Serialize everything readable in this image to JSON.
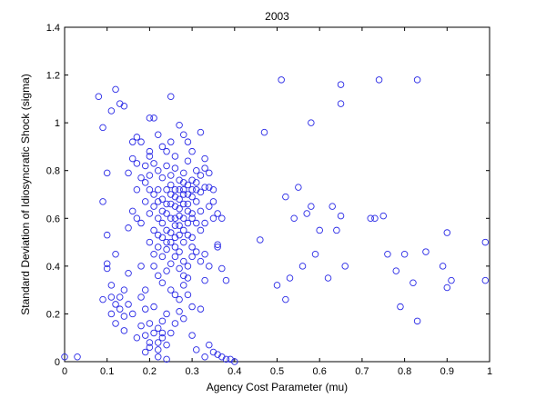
{
  "chart_data": {
    "type": "scatter",
    "title": "2003",
    "xlabel": "Agency Cost Parameter (mu)",
    "ylabel": "Standard Deviation of Idiosyncratic Shock (sigma)",
    "xlim": [
      0,
      1
    ],
    "ylim": [
      0,
      1.4
    ],
    "xticks": [
      "0",
      "0.1",
      "0.2",
      "0.3",
      "0.4",
      "0.5",
      "0.6",
      "0.7",
      "0.8",
      "0.9",
      "1"
    ],
    "yticks": [
      "0",
      "0.2",
      "0.4",
      "0.6",
      "0.8",
      "1",
      "1.2",
      "1.4"
    ],
    "grid": false,
    "marker_color": "#2a2ae6",
    "series": [
      {
        "marker": "circle-open",
        "points": [
          [
            0.0,
            0.02
          ],
          [
            0.03,
            0.02
          ],
          [
            0.08,
            1.11
          ],
          [
            0.09,
            0.98
          ],
          [
            0.1,
            0.79
          ],
          [
            0.1,
            0.41
          ],
          [
            0.1,
            0.39
          ],
          [
            0.11,
            1.05
          ],
          [
            0.12,
            1.14
          ],
          [
            0.12,
            0.45
          ],
          [
            0.13,
            1.08
          ],
          [
            0.14,
            1.07
          ],
          [
            0.1,
            0.53
          ],
          [
            0.09,
            0.67
          ],
          [
            0.09,
            0.26
          ],
          [
            0.11,
            0.2
          ],
          [
            0.11,
            0.32
          ],
          [
            0.12,
            0.24
          ],
          [
            0.13,
            0.27
          ],
          [
            0.14,
            0.3
          ],
          [
            0.14,
            0.19
          ],
          [
            0.15,
            0.37
          ],
          [
            0.15,
            0.79
          ],
          [
            0.16,
            0.85
          ],
          [
            0.16,
            0.92
          ],
          [
            0.17,
            0.94
          ],
          [
            0.17,
            0.83
          ],
          [
            0.18,
            0.92
          ],
          [
            0.18,
            0.4
          ],
          [
            0.18,
            0.27
          ],
          [
            0.19,
            0.3
          ],
          [
            0.19,
            0.22
          ],
          [
            0.19,
            0.11
          ],
          [
            0.2,
            0.88
          ],
          [
            0.2,
            1.02
          ],
          [
            0.2,
            0.78
          ],
          [
            0.21,
            1.02
          ],
          [
            0.2,
            0.16
          ],
          [
            0.2,
            0.06
          ],
          [
            0.19,
            0.04
          ],
          [
            0.21,
            0.23
          ],
          [
            0.21,
            0.4
          ],
          [
            0.22,
            0.36
          ],
          [
            0.22,
            0.72
          ],
          [
            0.22,
            0.05
          ],
          [
            0.22,
            0.02
          ],
          [
            0.22,
            0.08
          ],
          [
            0.23,
            0.12
          ],
          [
            0.23,
            0.17
          ],
          [
            0.24,
            0.2
          ],
          [
            0.24,
            0.01
          ],
          [
            0.25,
            1.11
          ],
          [
            0.25,
            0.92
          ],
          [
            0.26,
            0.86
          ],
          [
            0.27,
            0.99
          ],
          [
            0.28,
            0.95
          ],
          [
            0.29,
            0.92
          ],
          [
            0.3,
            0.88
          ],
          [
            0.31,
            0.8
          ],
          [
            0.32,
            0.96
          ],
          [
            0.33,
            0.85
          ],
          [
            0.34,
            0.73
          ],
          [
            0.35,
            0.67
          ],
          [
            0.35,
            0.6
          ],
          [
            0.36,
            0.49
          ],
          [
            0.37,
            0.39
          ],
          [
            0.38,
            0.34
          ],
          [
            0.33,
            0.34
          ],
          [
            0.32,
            0.22
          ],
          [
            0.3,
            0.11
          ],
          [
            0.31,
            0.05
          ],
          [
            0.33,
            0.02
          ],
          [
            0.34,
            0.07
          ],
          [
            0.35,
            0.04
          ],
          [
            0.36,
            0.03
          ],
          [
            0.37,
            0.02
          ],
          [
            0.38,
            0.01
          ],
          [
            0.39,
            0.01
          ],
          [
            0.4,
            0.0
          ],
          [
            0.21,
            0.55
          ],
          [
            0.21,
            0.65
          ],
          [
            0.22,
            0.6
          ],
          [
            0.23,
            0.58
          ],
          [
            0.23,
            0.68
          ],
          [
            0.24,
            0.62
          ],
          [
            0.24,
            0.55
          ],
          [
            0.25,
            0.6
          ],
          [
            0.25,
            0.7
          ],
          [
            0.25,
            0.5
          ],
          [
            0.26,
            0.57
          ],
          [
            0.26,
            0.65
          ],
          [
            0.26,
            0.72
          ],
          [
            0.27,
            0.61
          ],
          [
            0.27,
            0.53
          ],
          [
            0.27,
            0.68
          ],
          [
            0.28,
            0.6
          ],
          [
            0.28,
            0.66
          ],
          [
            0.28,
            0.55
          ],
          [
            0.28,
            0.75
          ],
          [
            0.29,
            0.63
          ],
          [
            0.29,
            0.58
          ],
          [
            0.29,
            0.7
          ],
          [
            0.3,
            0.62
          ],
          [
            0.3,
            0.72
          ],
          [
            0.3,
            0.52
          ],
          [
            0.31,
            0.67
          ],
          [
            0.31,
            0.75
          ],
          [
            0.32,
            0.71
          ],
          [
            0.32,
            0.63
          ],
          [
            0.33,
            0.73
          ],
          [
            0.33,
            0.58
          ],
          [
            0.34,
            0.65
          ],
          [
            0.26,
            0.48
          ],
          [
            0.26,
            0.44
          ],
          [
            0.27,
            0.46
          ],
          [
            0.27,
            0.39
          ],
          [
            0.28,
            0.42
          ],
          [
            0.28,
            0.36
          ],
          [
            0.29,
            0.4
          ],
          [
            0.29,
            0.35
          ],
          [
            0.3,
            0.44
          ],
          [
            0.25,
            0.41
          ],
          [
            0.24,
            0.47
          ],
          [
            0.23,
            0.44
          ],
          [
            0.24,
            0.38
          ],
          [
            0.23,
            0.33
          ],
          [
            0.22,
            0.48
          ],
          [
            0.21,
            0.45
          ],
          [
            0.2,
            0.5
          ],
          [
            0.2,
            0.62
          ],
          [
            0.19,
            0.67
          ],
          [
            0.18,
            0.58
          ],
          [
            0.17,
            0.6
          ],
          [
            0.16,
            0.63
          ],
          [
            0.15,
            0.56
          ],
          [
            0.17,
            0.72
          ],
          [
            0.18,
            0.77
          ],
          [
            0.19,
            0.82
          ],
          [
            0.2,
            0.86
          ],
          [
            0.21,
            0.83
          ],
          [
            0.22,
            0.8
          ],
          [
            0.23,
            0.77
          ],
          [
            0.24,
            0.82
          ],
          [
            0.25,
            0.78
          ],
          [
            0.26,
            0.81
          ],
          [
            0.27,
            0.76
          ],
          [
            0.28,
            0.79
          ],
          [
            0.29,
            0.84
          ],
          [
            0.3,
            0.76
          ],
          [
            0.24,
            0.88
          ],
          [
            0.23,
            0.9
          ],
          [
            0.22,
            0.95
          ],
          [
            0.25,
            0.3
          ],
          [
            0.26,
            0.28
          ],
          [
            0.27,
            0.26
          ],
          [
            0.28,
            0.32
          ],
          [
            0.29,
            0.28
          ],
          [
            0.3,
            0.23
          ],
          [
            0.28,
            0.18
          ],
          [
            0.27,
            0.21
          ],
          [
            0.26,
            0.16
          ],
          [
            0.25,
            0.12
          ],
          [
            0.23,
            0.1
          ],
          [
            0.24,
            0.07
          ],
          [
            0.22,
            0.14
          ],
          [
            0.21,
            0.12
          ],
          [
            0.2,
            0.08
          ],
          [
            0.18,
            0.15
          ],
          [
            0.17,
            0.1
          ],
          [
            0.16,
            0.2
          ],
          [
            0.15,
            0.24
          ],
          [
            0.14,
            0.13
          ],
          [
            0.13,
            0.22
          ],
          [
            0.12,
            0.16
          ],
          [
            0.11,
            0.27
          ],
          [
            0.25,
            0.66
          ],
          [
            0.26,
            0.6
          ],
          [
            0.27,
            0.64
          ],
          [
            0.28,
            0.7
          ],
          [
            0.29,
            0.66
          ],
          [
            0.3,
            0.6
          ],
          [
            0.31,
            0.58
          ],
          [
            0.32,
            0.55
          ],
          [
            0.24,
            0.66
          ],
          [
            0.23,
            0.63
          ],
          [
            0.22,
            0.67
          ],
          [
            0.21,
            0.7
          ],
          [
            0.2,
            0.72
          ],
          [
            0.19,
            0.75
          ],
          [
            0.22,
            0.53
          ],
          [
            0.23,
            0.52
          ],
          [
            0.24,
            0.5
          ],
          [
            0.25,
            0.54
          ],
          [
            0.26,
            0.52
          ],
          [
            0.27,
            0.57
          ],
          [
            0.28,
            0.5
          ],
          [
            0.29,
            0.53
          ],
          [
            0.3,
            0.48
          ],
          [
            0.31,
            0.46
          ],
          [
            0.32,
            0.42
          ],
          [
            0.33,
            0.45
          ],
          [
            0.34,
            0.4
          ],
          [
            0.36,
            0.48
          ],
          [
            0.37,
            0.6
          ],
          [
            0.36,
            0.62
          ],
          [
            0.35,
            0.72
          ],
          [
            0.34,
            0.79
          ],
          [
            0.33,
            0.81
          ],
          [
            0.32,
            0.78
          ],
          [
            0.31,
            0.72
          ],
          [
            0.3,
            0.69
          ],
          [
            0.29,
            0.74
          ],
          [
            0.28,
            0.72
          ],
          [
            0.27,
            0.72
          ],
          [
            0.26,
            0.69
          ],
          [
            0.25,
            0.74
          ],
          [
            0.24,
            0.72
          ],
          [
            0.47,
            0.96
          ],
          [
            0.46,
            0.51
          ],
          [
            0.5,
            0.32
          ],
          [
            0.51,
            1.18
          ],
          [
            0.52,
            0.26
          ],
          [
            0.52,
            0.69
          ],
          [
            0.53,
            0.35
          ],
          [
            0.54,
            0.6
          ],
          [
            0.55,
            0.73
          ],
          [
            0.56,
            0.4
          ],
          [
            0.57,
            0.62
          ],
          [
            0.58,
            0.65
          ],
          [
            0.58,
            1.0
          ],
          [
            0.59,
            0.45
          ],
          [
            0.6,
            0.55
          ],
          [
            0.62,
            0.35
          ],
          [
            0.63,
            0.65
          ],
          [
            0.64,
            0.55
          ],
          [
            0.65,
            0.61
          ],
          [
            0.65,
            1.08
          ],
          [
            0.65,
            1.16
          ],
          [
            0.66,
            0.4
          ],
          [
            0.72,
            0.6
          ],
          [
            0.73,
            0.6
          ],
          [
            0.74,
            1.18
          ],
          [
            0.75,
            0.61
          ],
          [
            0.76,
            0.45
          ],
          [
            0.78,
            0.38
          ],
          [
            0.79,
            0.23
          ],
          [
            0.8,
            0.45
          ],
          [
            0.82,
            0.33
          ],
          [
            0.83,
            0.17
          ],
          [
            0.83,
            1.18
          ],
          [
            0.85,
            0.46
          ],
          [
            0.89,
            0.4
          ],
          [
            0.9,
            0.31
          ],
          [
            0.9,
            0.54
          ],
          [
            0.91,
            0.34
          ],
          [
            0.99,
            0.5
          ],
          [
            0.99,
            0.34
          ]
        ]
      }
    ]
  }
}
